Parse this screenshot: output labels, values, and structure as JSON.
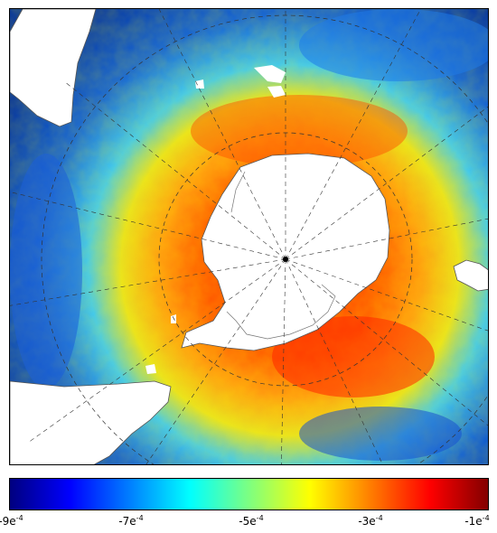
{
  "map": {
    "projection": "south-polar-stereographic",
    "field_gradient": "ocean-field-shading",
    "land_color": "#ffffff",
    "coastline_color": "#555555"
  },
  "colorbar": {
    "colormap": [
      "#00007f",
      "#0000ff",
      "#007fff",
      "#00ffff",
      "#7fff7f",
      "#ffff00",
      "#ff7f00",
      "#ff0000",
      "#7f0000"
    ],
    "ticks": [
      {
        "base": "-9e",
        "exp": "-4"
      },
      {
        "base": "-7e",
        "exp": "-4"
      },
      {
        "base": "-5e",
        "exp": "-4"
      },
      {
        "base": "-3e",
        "exp": "-4"
      },
      {
        "base": "-1e",
        "exp": "-4"
      }
    ]
  }
}
